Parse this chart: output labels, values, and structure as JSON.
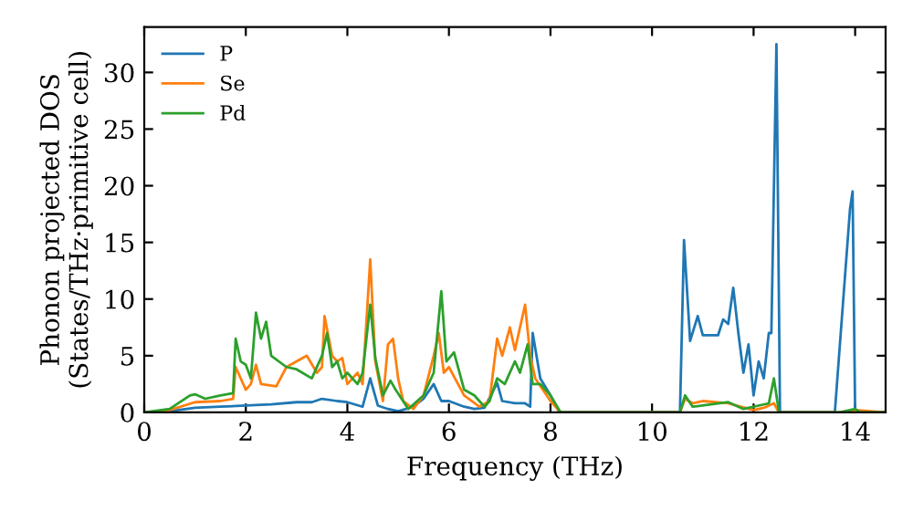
{
  "chart_data": {
    "type": "line",
    "xlabel": "Frequency (THz)",
    "ylabel": "Phonon projected DOS\n(States/THz·primitive cell)",
    "xlim": [
      0,
      14.6
    ],
    "ylim": [
      0,
      34
    ],
    "xticks": [
      0,
      2,
      4,
      6,
      8,
      10,
      12,
      14
    ],
    "yticks": [
      0,
      5,
      10,
      15,
      20,
      25,
      30
    ],
    "legend": "top left",
    "grid": false,
    "series": [
      {
        "name": "P",
        "color": "#1f77b4",
        "x": [
          0,
          0.5,
          1,
          1.5,
          2,
          2.5,
          3,
          3.3,
          3.5,
          3.8,
          4.0,
          4.3,
          4.45,
          4.6,
          4.8,
          5.0,
          5.3,
          5.5,
          5.7,
          5.85,
          6.0,
          6.3,
          6.5,
          6.7,
          6.95,
          7.05,
          7.3,
          7.5,
          7.6,
          7.65,
          7.8,
          8.0,
          8.15,
          8.2,
          10.55,
          10.63,
          10.75,
          10.9,
          11.0,
          11.3,
          11.4,
          11.5,
          11.6,
          11.7,
          11.8,
          11.9,
          12.0,
          12.1,
          12.2,
          12.3,
          12.35,
          12.45,
          12.52,
          13.6,
          13.8,
          13.9,
          13.95,
          14.0,
          14.6
        ],
        "values": [
          0,
          0.1,
          0.4,
          0.5,
          0.6,
          0.7,
          0.9,
          0.9,
          1.2,
          1.0,
          0.9,
          0.5,
          3.0,
          0.6,
          0.3,
          0.1,
          0.5,
          1.2,
          2.5,
          1.0,
          1.0,
          0.5,
          0.3,
          0.4,
          2.6,
          1.0,
          0.8,
          0.8,
          0.5,
          7.0,
          3.0,
          1.5,
          0.2,
          0,
          0,
          15.2,
          6.3,
          8.5,
          6.8,
          6.8,
          8.2,
          7.8,
          11.0,
          7.0,
          3.5,
          6.0,
          1.5,
          4.5,
          3.0,
          7.0,
          7.0,
          32.5,
          0,
          0,
          12,
          18,
          19.5,
          0,
          0
        ]
      },
      {
        "name": "Se",
        "color": "#ff7f0e",
        "x": [
          0,
          0.5,
          1,
          1.5,
          1.75,
          1.8,
          2.0,
          2.1,
          2.2,
          2.3,
          2.6,
          2.8,
          3.0,
          3.2,
          3.4,
          3.5,
          3.55,
          3.7,
          3.8,
          3.9,
          4.0,
          4.2,
          4.3,
          4.45,
          4.55,
          4.7,
          4.8,
          4.9,
          5.0,
          5.1,
          5.3,
          5.5,
          5.7,
          5.8,
          5.9,
          6.0,
          6.3,
          6.6,
          6.8,
          6.95,
          7.05,
          7.2,
          7.3,
          7.5,
          7.6,
          7.7,
          8.0,
          8.2,
          10.55,
          10.65,
          10.8,
          11.0,
          11.5,
          12.0,
          12.2,
          12.4,
          12.5,
          13.7,
          14.0,
          14.6
        ],
        "values": [
          0,
          0.2,
          0.9,
          1.0,
          1.2,
          4.0,
          2.0,
          2.5,
          4.2,
          2.5,
          2.3,
          4.0,
          4.5,
          5.0,
          3.5,
          4.0,
          8.5,
          5.0,
          4.5,
          4.8,
          2.5,
          3.5,
          2.5,
          13.5,
          4.5,
          1.0,
          6.0,
          6.5,
          3.0,
          1.0,
          0.3,
          1.5,
          5.0,
          7.0,
          3.5,
          4.0,
          1.5,
          0.5,
          1.0,
          6.5,
          5.0,
          7.5,
          5.5,
          9.5,
          5.0,
          3.0,
          1.0,
          0,
          0,
          1.2,
          0.8,
          1.0,
          0.8,
          0.2,
          0.4,
          0.8,
          0,
          0,
          0.2,
          0
        ]
      },
      {
        "name": "Pd",
        "color": "#2ca02c",
        "x": [
          0,
          0.5,
          0.9,
          1.0,
          1.2,
          1.5,
          1.75,
          1.8,
          1.9,
          2.0,
          2.1,
          2.2,
          2.3,
          2.4,
          2.5,
          2.8,
          3.0,
          3.3,
          3.5,
          3.6,
          3.7,
          3.8,
          3.9,
          4.0,
          4.2,
          4.3,
          4.45,
          4.55,
          4.7,
          4.85,
          4.95,
          5.2,
          5.5,
          5.7,
          5.85,
          5.95,
          6.1,
          6.3,
          6.5,
          6.7,
          6.8,
          6.95,
          7.1,
          7.3,
          7.4,
          7.55,
          7.65,
          7.8,
          8.0,
          8.2,
          10.55,
          10.65,
          10.8,
          11.5,
          11.8,
          12.3,
          12.4,
          12.5,
          13.7,
          14.0,
          14.1,
          14.6
        ],
        "values": [
          0,
          0.3,
          1.5,
          1.6,
          1.2,
          1.5,
          1.7,
          6.5,
          4.5,
          4.2,
          3.0,
          8.8,
          6.5,
          8.0,
          5.0,
          4.0,
          3.8,
          3.0,
          5.0,
          7.0,
          4.0,
          4.5,
          3.0,
          3.5,
          2.5,
          3.5,
          9.5,
          4.8,
          1.5,
          2.8,
          2.0,
          0.3,
          1.5,
          3.5,
          10.7,
          4.5,
          5.3,
          2.0,
          1.5,
          0.5,
          1.0,
          3.0,
          2.5,
          4.5,
          3.5,
          6.0,
          2.5,
          2.5,
          1.5,
          0,
          0,
          1.5,
          0.5,
          0.9,
          0.3,
          0.8,
          3.0,
          0,
          0,
          0.3,
          0,
          0
        ]
      }
    ]
  }
}
